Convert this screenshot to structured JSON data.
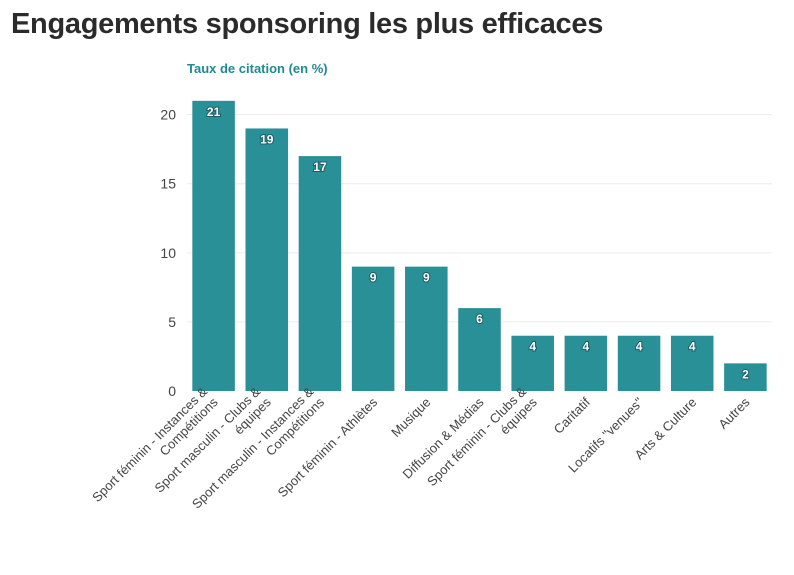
{
  "chart_data": {
    "type": "bar",
    "title": "Engagements sponsoring les plus efficaces",
    "ylabel": "Taux de citation (en %)",
    "xlabel": "",
    "categories": [
      "Sport féminin - Instances & Compétitions",
      "Sport masculin - Clubs & équipes",
      "Sport masculin - Instances & Compétitions",
      "Sport féminin - Athlètes",
      "Musique",
      "Diffusion & Médias",
      "Sport féminin - Clubs & équipes",
      "Caritatif",
      "Locatifs \"venues\"",
      "Arts & Culture",
      "Autres"
    ],
    "category_lines": [
      [
        "Sport féminin - Instances &",
        "Compétitions"
      ],
      [
        "Sport masculin - Clubs &",
        "équipes"
      ],
      [
        "Sport masculin - Instances &",
        "Compétitions"
      ],
      [
        "Sport féminin - Athlètes"
      ],
      [
        "Musique"
      ],
      [
        "Diffusion & Médias"
      ],
      [
        "Sport féminin - Clubs &",
        "équipes"
      ],
      [
        "Caritatif"
      ],
      [
        "Locatifs \"venues\""
      ],
      [
        "Arts & Culture"
      ],
      [
        "Autres"
      ]
    ],
    "values": [
      21,
      19,
      17,
      9,
      9,
      6,
      4,
      4,
      4,
      4,
      2
    ],
    "ylim": [
      0,
      22
    ],
    "yticks": [
      0,
      5,
      10,
      15,
      20
    ],
    "grid": true,
    "bar_color": "#2a9098",
    "label_color": "#1f8a93"
  }
}
